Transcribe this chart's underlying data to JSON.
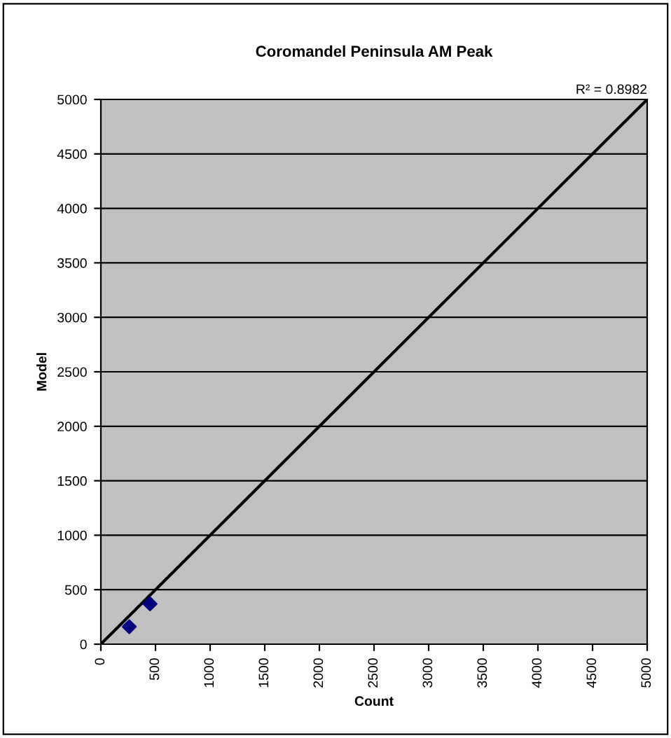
{
  "chart_data": {
    "type": "scatter",
    "title": "Coromandel Peninsula AM Peak",
    "xlabel": "Count",
    "ylabel": "Model",
    "series": [
      {
        "x": [
          260,
          450
        ],
        "values": [
          160,
          370
        ],
        "color": "#000080",
        "marker": "diamond"
      },
      {
        "type": "line",
        "x": [
          0,
          5000
        ],
        "values": [
          0,
          5000
        ],
        "color": "#000000",
        "marker": "none",
        "line_style": "solid"
      }
    ],
    "annotations": [
      "R² = 0.8982"
    ],
    "xlim": [
      0,
      5000
    ],
    "ylim": [
      0,
      5000
    ],
    "xticks": [
      0,
      500,
      1000,
      1500,
      2000,
      2500,
      3000,
      3500,
      4000,
      4500,
      5000
    ],
    "yticks": [
      0,
      500,
      1000,
      1500,
      2000,
      2500,
      3000,
      3500,
      4000,
      4500,
      5000
    ],
    "grid": "y",
    "legend": false
  }
}
